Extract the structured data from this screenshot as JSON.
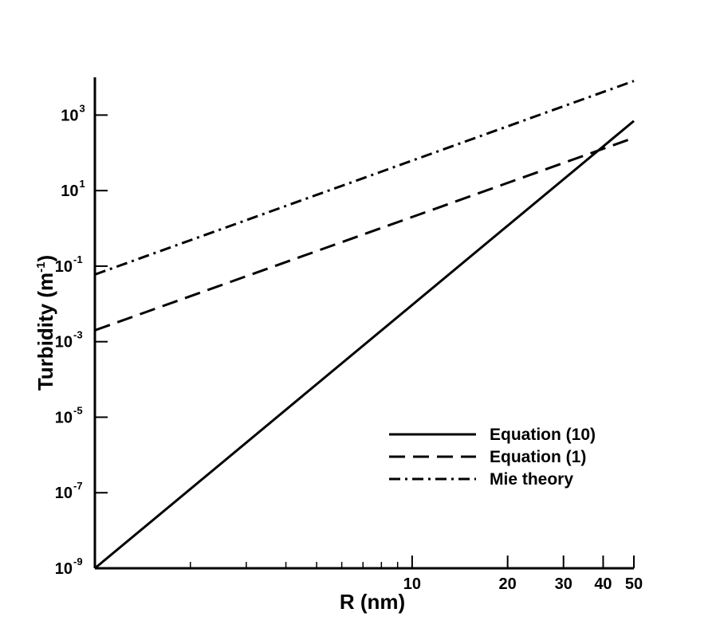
{
  "chart_data": {
    "type": "line",
    "x_scale": "log",
    "y_scale": "log",
    "xlabel": "R (nm)",
    "ylabel": {
      "base": "Turbidity (m",
      "exponent": "-1",
      "close": ")"
    },
    "xlim": [
      1,
      50
    ],
    "ylim": [
      1e-09,
      10000
    ],
    "x_ticks": [
      {
        "value": 10,
        "label": "10"
      },
      {
        "value": 20,
        "label": "20"
      },
      {
        "value": 30,
        "label": "30"
      },
      {
        "value": 40,
        "label": "40"
      },
      {
        "value": 50,
        "label": "50"
      }
    ],
    "y_ticks": [
      {
        "value": 1e-09,
        "base": "10",
        "exponent": "-9"
      },
      {
        "value": 1e-07,
        "base": "10",
        "exponent": "-7"
      },
      {
        "value": 1e-05,
        "base": "10",
        "exponent": "-5"
      },
      {
        "value": 0.001,
        "base": "10",
        "exponent": "-3"
      },
      {
        "value": 0.1,
        "base": "10",
        "exponent": "-1"
      },
      {
        "value": 10,
        "base": "10",
        "exponent": "1"
      },
      {
        "value": 1000,
        "base": "10",
        "exponent": "3"
      }
    ],
    "grid": false,
    "legend": {
      "position": "lower-right"
    },
    "series": [
      {
        "name": "Equation (10)",
        "style": "solid",
        "x": [
          1,
          50
        ],
        "y": [
          1e-09,
          700
        ]
      },
      {
        "name": "Equation (1)",
        "style": "dashed",
        "x": [
          1,
          50
        ],
        "y": [
          0.002,
          250
        ]
      },
      {
        "name": "Mie theory",
        "style": "dashdot",
        "x": [
          1,
          50
        ],
        "y": [
          0.06,
          8000
        ]
      }
    ]
  }
}
